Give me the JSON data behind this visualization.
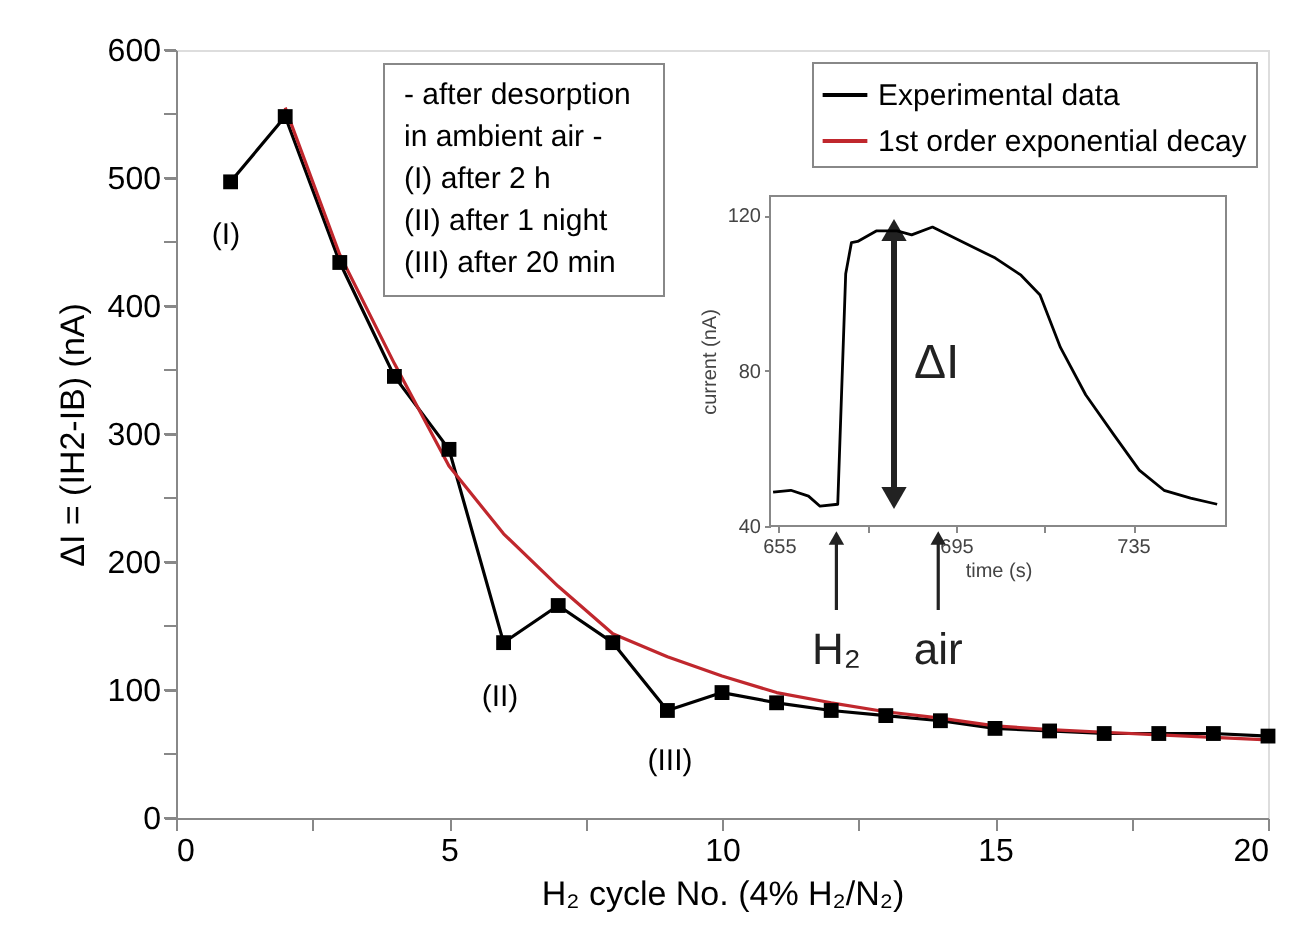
{
  "chart_data": [
    {
      "type": "line",
      "xlabel": "H₂ cycle No. (4% H₂/N₂)",
      "ylabel": "ΔI = (IH2-IB)  (nA)",
      "x": [
        1,
        2,
        3,
        4,
        5,
        6,
        7,
        8,
        9,
        10,
        11,
        12,
        13,
        14,
        15,
        16,
        17,
        18,
        19,
        20
      ],
      "xlim": [
        0,
        20
      ],
      "xticks": [
        0,
        {
          "value": 2.5,
          "label": null
        },
        5,
        {
          "value": 7.5,
          "label": null
        },
        10,
        {
          "value": 12.5,
          "label": null
        },
        15,
        {
          "value": 17.5,
          "label": null
        },
        20
      ],
      "ylim": [
        0,
        600
      ],
      "yticks": [
        0,
        {
          "value": 50,
          "label": null
        },
        100,
        {
          "value": 150,
          "label": null
        },
        200,
        {
          "value": 250,
          "label": null
        },
        300,
        {
          "value": 350,
          "label": null
        },
        400,
        {
          "value": 450,
          "label": null
        },
        500,
        {
          "value": 550,
          "label": null
        },
        600
      ],
      "grid": false,
      "legend": "top right",
      "series": [
        {
          "name": "Experimental data",
          "color": "#000000",
          "marker": "square",
          "values": [
            497,
            548,
            434,
            345,
            288,
            137,
            166,
            137,
            84,
            98,
            90,
            84,
            80,
            76,
            70,
            68,
            66,
            66,
            66,
            64
          ]
        },
        {
          "name": "1st order exponential decay",
          "color": "#c0272d",
          "marker": "none",
          "x": [
            2,
            3,
            4,
            5,
            6,
            7,
            8,
            9,
            10,
            11,
            12,
            13,
            14,
            15,
            16,
            17,
            18,
            19,
            20
          ],
          "values": [
            555,
            440,
            355,
            275,
            222,
            181,
            144,
            126,
            111,
            98,
            90,
            83,
            78,
            72,
            69,
            67,
            65,
            63,
            61
          ]
        }
      ],
      "annotations": [
        "- after desorption",
        "in ambient air -",
        "(I)   after 2 h",
        "(II)  after 1 night",
        "(III) after 20 min",
        "(I)",
        "(II)",
        "(III)"
      ]
    },
    {
      "type": "line",
      "xlabel": "time (s)",
      "ylabel": "current (nA)",
      "xlim": [
        653,
        756
      ],
      "xticks": [
        655,
        {
          "value": 675,
          "label": null
        },
        695,
        {
          "value": 715,
          "label": null
        },
        735
      ],
      "ylim": [
        40,
        125
      ],
      "yticks": [
        40,
        80,
        120
      ],
      "x": [
        653.7,
        657.7,
        661.7,
        664.3,
        668.3,
        670.1,
        671.4,
        672.8,
        677,
        681.7,
        685,
        689.7,
        696.3,
        703.9,
        709.7,
        714,
        718.6,
        724.3,
        730.6,
        736.4,
        742,
        748,
        754
      ],
      "series": [
        {
          "color": "#000000",
          "marker": "none",
          "values": [
            48.7,
            49.2,
            47.7,
            45.1,
            45.6,
            105,
            113,
            113.3,
            116,
            116,
            115,
            117,
            113.3,
            109,
            104.6,
            99.5,
            86,
            73.8,
            63.6,
            54.4,
            49.2,
            47.2,
            45.6
          ]
        }
      ],
      "annotations": [
        "ΔI",
        {
          "text": "H₂",
          "x": 668
        },
        {
          "text": "air",
          "x": 691
        }
      ]
    }
  ]
}
